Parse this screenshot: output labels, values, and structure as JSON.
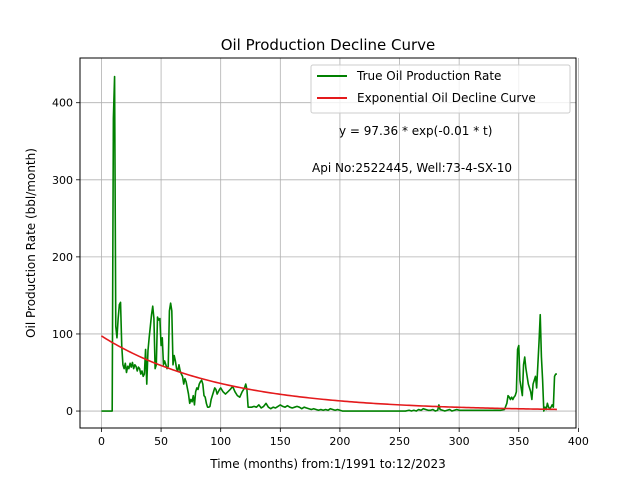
{
  "chart_data": {
    "type": "line",
    "title": "Oil Production Decline Curve",
    "xlabel": "Time (months) from:1/1991 to:12/2023",
    "ylabel": "Oil Production Rate (bbl/month)",
    "xlim": [
      -18,
      398
    ],
    "ylim": [
      -22,
      458
    ],
    "xticks": [
      0,
      50,
      100,
      150,
      200,
      250,
      300,
      350,
      400
    ],
    "yticks": [
      0,
      100,
      200,
      300,
      400
    ],
    "grid": true,
    "legend_position": "top-right",
    "annotations": [
      "y = 97.36 * exp(-0.01 * t)",
      "Api No:2522445, Well:73-4-SX-10"
    ],
    "series": [
      {
        "name": "True Oil Production Rate",
        "color": "#008000",
        "points": [
          [
            0,
            0
          ],
          [
            2,
            0
          ],
          [
            4,
            0
          ],
          [
            6,
            0
          ],
          [
            8,
            0
          ],
          [
            9,
            0
          ],
          [
            10,
            380
          ],
          [
            11,
            434
          ],
          [
            12,
            110
          ],
          [
            13,
            95
          ],
          [
            14,
            120
          ],
          [
            15,
            138
          ],
          [
            16,
            141
          ],
          [
            17,
            85
          ],
          [
            18,
            60
          ],
          [
            19,
            55
          ],
          [
            20,
            62
          ],
          [
            21,
            50
          ],
          [
            22,
            58
          ],
          [
            23,
            55
          ],
          [
            24,
            62
          ],
          [
            25,
            57
          ],
          [
            26,
            63
          ],
          [
            27,
            55
          ],
          [
            28,
            60
          ],
          [
            29,
            58
          ],
          [
            30,
            52
          ],
          [
            31,
            57
          ],
          [
            32,
            55
          ],
          [
            33,
            48
          ],
          [
            34,
            52
          ],
          [
            35,
            45
          ],
          [
            36,
            48
          ],
          [
            37,
            80
          ],
          [
            38,
            35
          ],
          [
            39,
            78
          ],
          [
            40,
            95
          ],
          [
            41,
            110
          ],
          [
            42,
            125
          ],
          [
            43,
            136
          ],
          [
            44,
            120
          ],
          [
            45,
            55
          ],
          [
            46,
            60
          ],
          [
            47,
            122
          ],
          [
            48,
            118
          ],
          [
            49,
            120
          ],
          [
            50,
            85
          ],
          [
            51,
            95
          ],
          [
            52,
            60
          ],
          [
            53,
            65
          ],
          [
            54,
            60
          ],
          [
            55,
            55
          ],
          [
            56,
            58
          ],
          [
            57,
            130
          ],
          [
            58,
            140
          ],
          [
            59,
            130
          ],
          [
            60,
            60
          ],
          [
            61,
            72
          ],
          [
            62,
            65
          ],
          [
            63,
            55
          ],
          [
            64,
            52
          ],
          [
            65,
            60
          ],
          [
            66,
            52
          ],
          [
            67,
            48
          ],
          [
            68,
            45
          ],
          [
            69,
            35
          ],
          [
            70,
            42
          ],
          [
            71,
            38
          ],
          [
            72,
            30
          ],
          [
            73,
            22
          ],
          [
            74,
            10
          ],
          [
            75,
            15
          ],
          [
            76,
            12
          ],
          [
            77,
            20
          ],
          [
            78,
            8
          ],
          [
            79,
            25
          ],
          [
            80,
            30
          ],
          [
            81,
            28
          ],
          [
            82,
            35
          ],
          [
            83,
            38
          ],
          [
            84,
            40
          ],
          [
            85,
            35
          ],
          [
            86,
            20
          ],
          [
            87,
            18
          ],
          [
            88,
            10
          ],
          [
            89,
            5
          ],
          [
            90,
            5
          ],
          [
            91,
            6
          ],
          [
            92,
            15
          ],
          [
            93,
            20
          ],
          [
            94,
            25
          ],
          [
            95,
            30
          ],
          [
            96,
            28
          ],
          [
            97,
            22
          ],
          [
            98,
            25
          ],
          [
            99,
            28
          ],
          [
            100,
            30
          ],
          [
            102,
            25
          ],
          [
            104,
            22
          ],
          [
            106,
            25
          ],
          [
            108,
            28
          ],
          [
            110,
            32
          ],
          [
            112,
            25
          ],
          [
            114,
            20
          ],
          [
            116,
            18
          ],
          [
            118,
            25
          ],
          [
            120,
            30
          ],
          [
            121,
            35
          ],
          [
            122,
            28
          ],
          [
            123,
            5
          ],
          [
            124,
            5
          ],
          [
            126,
            5
          ],
          [
            128,
            6
          ],
          [
            130,
            5
          ],
          [
            132,
            8
          ],
          [
            134,
            4
          ],
          [
            136,
            6
          ],
          [
            138,
            10
          ],
          [
            140,
            5
          ],
          [
            142,
            3
          ],
          [
            144,
            5
          ],
          [
            146,
            4
          ],
          [
            148,
            6
          ],
          [
            150,
            8
          ],
          [
            152,
            6
          ],
          [
            154,
            5
          ],
          [
            156,
            7
          ],
          [
            158,
            5
          ],
          [
            160,
            4
          ],
          [
            162,
            5
          ],
          [
            164,
            6
          ],
          [
            166,
            5
          ],
          [
            168,
            3
          ],
          [
            170,
            5
          ],
          [
            172,
            4
          ],
          [
            174,
            3
          ],
          [
            176,
            2
          ],
          [
            178,
            3
          ],
          [
            180,
            2
          ],
          [
            182,
            1
          ],
          [
            184,
            2
          ],
          [
            186,
            1
          ],
          [
            188,
            2
          ],
          [
            190,
            1
          ],
          [
            192,
            3
          ],
          [
            194,
            2
          ],
          [
            196,
            1
          ],
          [
            198,
            2
          ],
          [
            200,
            1
          ],
          [
            202,
            0
          ],
          [
            205,
            0
          ],
          [
            210,
            0
          ],
          [
            215,
            0
          ],
          [
            220,
            0
          ],
          [
            230,
            0
          ],
          [
            240,
            0
          ],
          [
            250,
            0
          ],
          [
            255,
            0
          ],
          [
            258,
            1
          ],
          [
            260,
            0
          ],
          [
            262,
            1
          ],
          [
            264,
            0
          ],
          [
            266,
            2
          ],
          [
            268,
            1
          ],
          [
            270,
            3
          ],
          [
            272,
            2
          ],
          [
            274,
            1
          ],
          [
            276,
            1
          ],
          [
            278,
            2
          ],
          [
            280,
            0
          ],
          [
            282,
            1
          ],
          [
            283,
            8
          ],
          [
            284,
            2
          ],
          [
            286,
            1
          ],
          [
            288,
            0
          ],
          [
            290,
            1
          ],
          [
            292,
            2
          ],
          [
            294,
            0
          ],
          [
            296,
            1
          ],
          [
            298,
            2
          ],
          [
            300,
            1
          ],
          [
            305,
            1
          ],
          [
            310,
            1
          ],
          [
            315,
            1
          ],
          [
            320,
            1
          ],
          [
            325,
            1
          ],
          [
            330,
            1
          ],
          [
            335,
            1
          ],
          [
            338,
            2
          ],
          [
            340,
            10
          ],
          [
            341,
            20
          ],
          [
            342,
            18
          ],
          [
            343,
            15
          ],
          [
            344,
            18
          ],
          [
            345,
            15
          ],
          [
            346,
            18
          ],
          [
            347,
            20
          ],
          [
            348,
            25
          ],
          [
            349,
            80
          ],
          [
            350,
            85
          ],
          [
            351,
            40
          ],
          [
            352,
            30
          ],
          [
            353,
            20
          ],
          [
            354,
            60
          ],
          [
            355,
            70
          ],
          [
            356,
            55
          ],
          [
            357,
            45
          ],
          [
            358,
            35
          ],
          [
            359,
            30
          ],
          [
            360,
            25
          ],
          [
            361,
            15
          ],
          [
            362,
            35
          ],
          [
            363,
            40
          ],
          [
            364,
            45
          ],
          [
            365,
            30
          ],
          [
            366,
            60
          ],
          [
            367,
            90
          ],
          [
            368,
            125
          ],
          [
            369,
            70
          ],
          [
            370,
            40
          ],
          [
            371,
            0
          ],
          [
            372,
            5
          ],
          [
            373,
            2
          ],
          [
            374,
            10
          ],
          [
            375,
            5
          ],
          [
            376,
            3
          ],
          [
            377,
            5
          ],
          [
            378,
            8
          ],
          [
            379,
            5
          ],
          [
            380,
            45
          ],
          [
            381,
            48
          ],
          [
            382,
            48
          ]
        ]
      },
      {
        "name": "Exponential Oil Decline Curve",
        "color": "#e41a1c",
        "equation": {
          "a": 97.36,
          "b": 0.01,
          "t_start": 0,
          "t_end": 382
        }
      }
    ]
  }
}
